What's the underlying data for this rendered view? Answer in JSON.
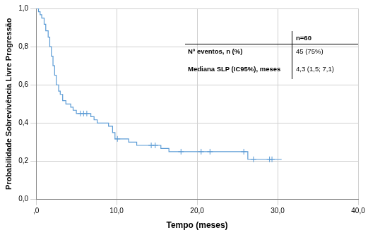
{
  "chart_data": {
    "type": "line",
    "x_label": "Tempo (meses)",
    "y_label": "Probabilidade Sobrevivência Livre Progressão",
    "series": [
      {
        "type": "step",
        "color": "#5b9bd5",
        "line_style": "solid",
        "x": [
          0,
          0.3,
          0.5,
          0.7,
          1.0,
          1.2,
          1.5,
          1.7,
          1.9,
          2.1,
          2.3,
          2.5,
          2.8,
          3.0,
          3.3,
          3.7,
          4.3,
          4.6,
          5.0,
          6.8,
          7.2,
          7.6,
          9.0,
          9.5,
          9.8,
          11.5,
          12.5,
          15.5,
          16.5,
          26.3,
          30.5
        ],
        "values": [
          1.0,
          0.983,
          0.967,
          0.95,
          0.917,
          0.883,
          0.85,
          0.8,
          0.75,
          0.7,
          0.65,
          0.6,
          0.567,
          0.55,
          0.517,
          0.5,
          0.483,
          0.467,
          0.45,
          0.433,
          0.417,
          0.4,
          0.383,
          0.35,
          0.317,
          0.3,
          0.283,
          0.267,
          0.25,
          0.21,
          0.21
        ]
      },
      {
        "type": "scatter",
        "color": "#5b9bd5",
        "marker": "cross",
        "x": [
          5.5,
          5.9,
          6.3,
          10.1,
          14.3,
          14.8,
          18.0,
          20.5,
          21.6,
          25.8,
          27.0,
          29.0,
          29.3
        ],
        "values": [
          0.45,
          0.45,
          0.45,
          0.317,
          0.283,
          0.283,
          0.25,
          0.25,
          0.25,
          0.25,
          0.21,
          0.21,
          0.21
        ]
      }
    ],
    "xlim": [
      0,
      40
    ],
    "xticks": [
      {
        "value": 0,
        "label": ",0"
      },
      {
        "value": 10,
        "label": "10,0"
      },
      {
        "value": 20,
        "label": "20,0"
      },
      {
        "value": 30,
        "label": "30,0"
      },
      {
        "value": 40,
        "label": "40,0"
      }
    ],
    "ylim": [
      0,
      1
    ],
    "yticks": [
      {
        "value": 0,
        "label": "0,0"
      },
      {
        "value": 0.2,
        "label": "0,2"
      },
      {
        "value": 0.4,
        "label": "0,4"
      },
      {
        "value": 0.6,
        "label": "0,6"
      },
      {
        "value": 0.8,
        "label": "0,8"
      },
      {
        "value": 1,
        "label": "1,0"
      }
    ],
    "grid": true,
    "table": {
      "header": "n=60",
      "rows": [
        [
          "Nº eventos, n (%)",
          "45 (75%)"
        ],
        [
          "Mediana SLP (IC95%), meses",
          "4,3 (1,5; 7,1)"
        ]
      ]
    }
  }
}
